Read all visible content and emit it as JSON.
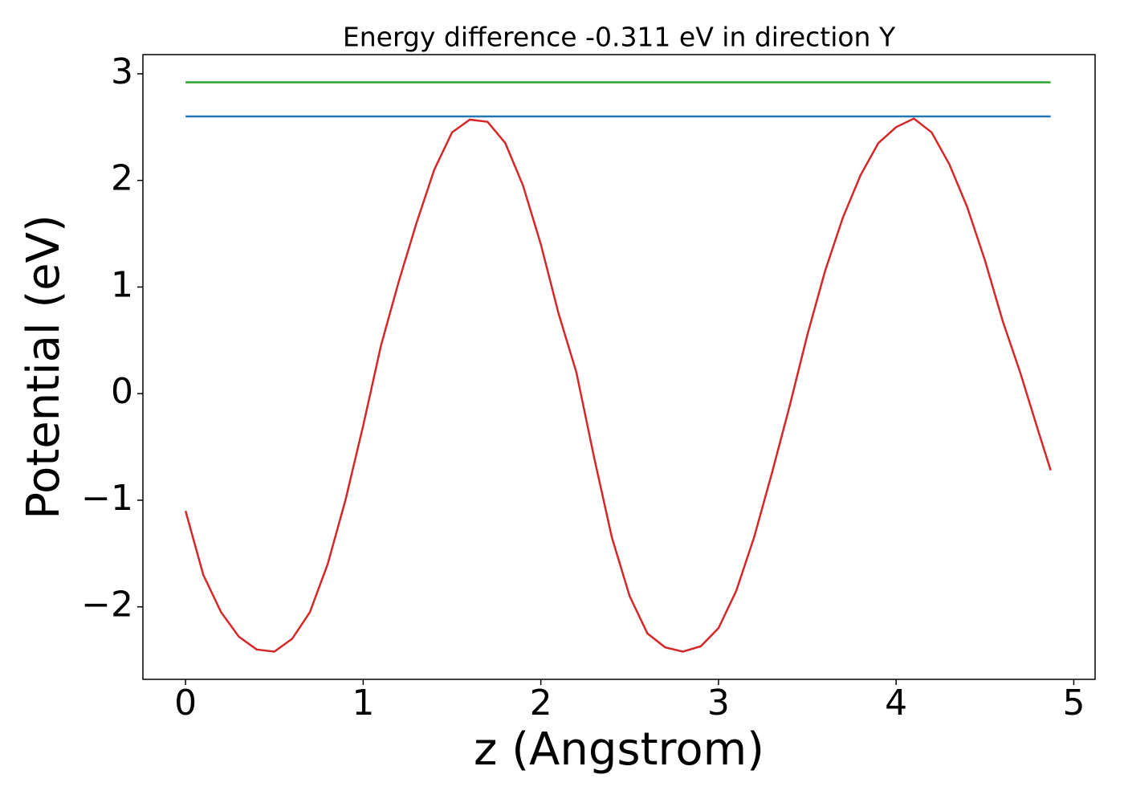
{
  "chart_data": {
    "type": "line",
    "title": "Energy difference -0.311 eV in direction Y",
    "xlabel": "z (Angstrom)",
    "ylabel": "Potential (eV)",
    "xlim": [
      -0.24,
      5.12
    ],
    "ylim": [
      -2.68,
      3.18
    ],
    "xticks": [
      0,
      1,
      2,
      3,
      4,
      5
    ],
    "yticks": [
      {
        "value": -2,
        "label": "−2"
      },
      {
        "value": -1,
        "label": "−1"
      },
      0,
      1,
      2,
      3
    ],
    "series": [
      {
        "color": "#d62728",
        "x": [
          0,
          0.1,
          0.2,
          0.3,
          0.4,
          0.5,
          0.6,
          0.7,
          0.8,
          0.9,
          1.0,
          1.1,
          1.2,
          1.3,
          1.4,
          1.5,
          1.6,
          1.7,
          1.8,
          1.9,
          2.0,
          2.1,
          2.2,
          2.3,
          2.4,
          2.5,
          2.6,
          2.7,
          2.8,
          2.9,
          3.0,
          3.1,
          3.2,
          3.3,
          3.4,
          3.5,
          3.6,
          3.7,
          3.8,
          3.9,
          4.0,
          4.1,
          4.2,
          4.3,
          4.4,
          4.5,
          4.6,
          4.7,
          4.8,
          4.87
        ],
        "values": [
          -1.1,
          -1.7,
          -2.05,
          -2.28,
          -2.4,
          -2.42,
          -2.3,
          -2.05,
          -1.6,
          -1.0,
          -0.3,
          0.45,
          1.05,
          1.6,
          2.1,
          2.45,
          2.57,
          2.55,
          2.35,
          1.95,
          1.4,
          0.75,
          0.2,
          -0.6,
          -1.35,
          -1.9,
          -2.25,
          -2.38,
          -2.42,
          -2.37,
          -2.2,
          -1.85,
          -1.35,
          -0.75,
          -0.12,
          0.55,
          1.15,
          1.65,
          2.05,
          2.35,
          2.5,
          2.58,
          2.45,
          2.15,
          1.75,
          1.25,
          0.68,
          0.19,
          -0.35,
          -0.72
        ]
      },
      {
        "color": "#1f77b4",
        "x": [
          0,
          4.87
        ],
        "values": [
          2.6,
          2.6
        ]
      },
      {
        "color": "#2ca02c",
        "x": [
          0,
          4.87
        ],
        "values": [
          2.92,
          2.92
        ]
      }
    ]
  }
}
